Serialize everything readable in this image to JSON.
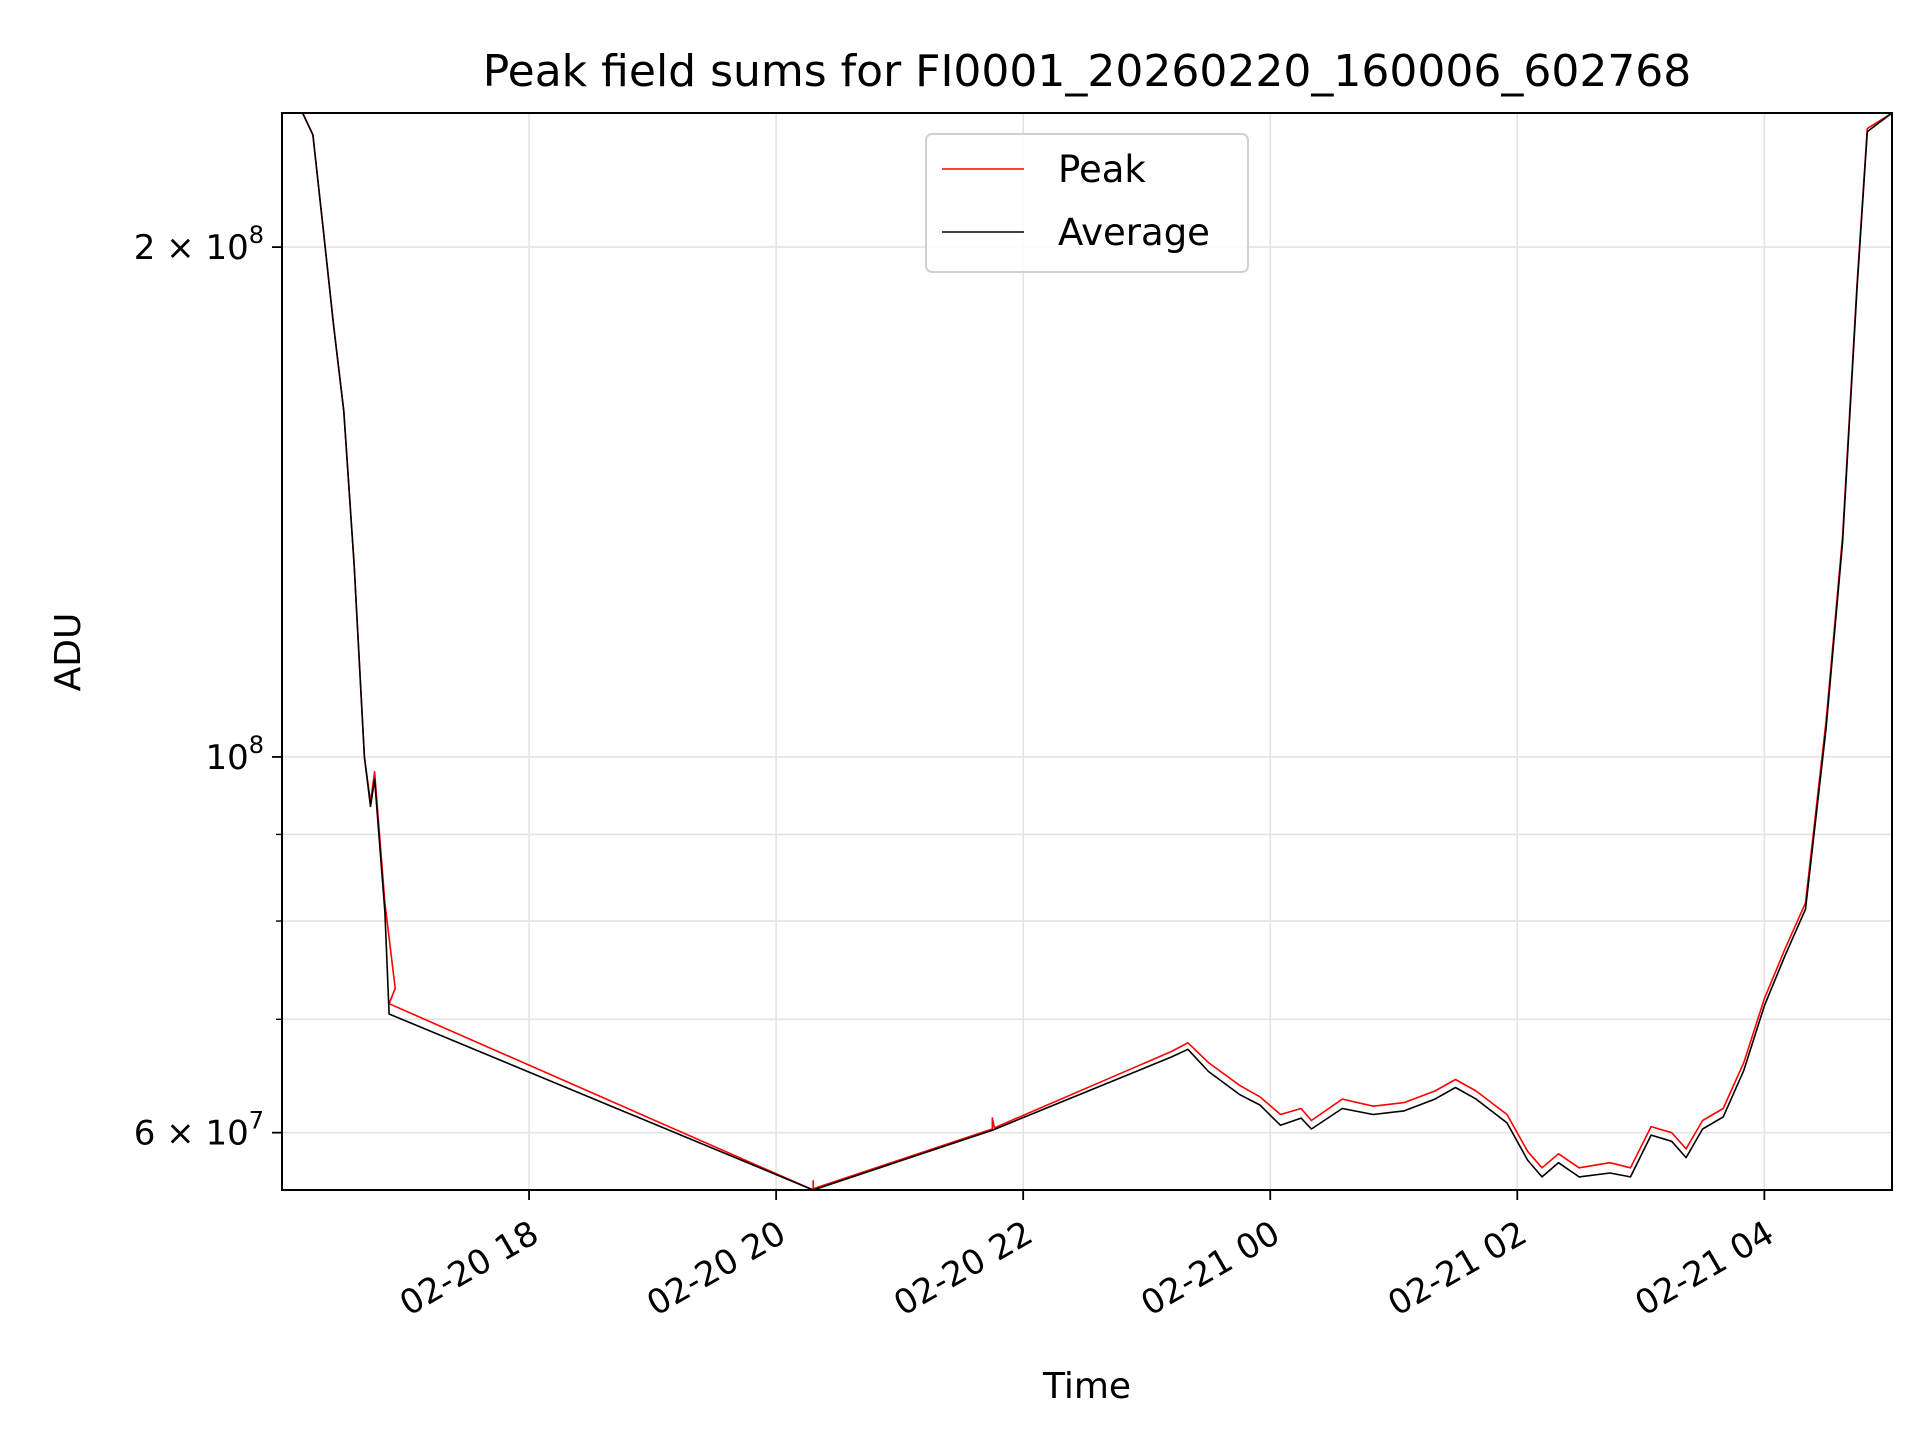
{
  "chart_data": {
    "type": "line",
    "title": "Peak field sums for FI0001_20260220_160006_602768",
    "xlabel": "Time",
    "ylabel": "ADU",
    "x_range": [
      "2026-02-20 16:00",
      "2026-02-21 05:02"
    ],
    "y_range": [
      55500000,
      240000000
    ],
    "y_scale": "log",
    "grid": true,
    "legend_position": "top-center",
    "x_ticks": [
      {
        "label": "02-20 18",
        "t": "2026-02-20 18:00"
      },
      {
        "label": "02-20 20",
        "t": "2026-02-20 20:00"
      },
      {
        "label": "02-20 22",
        "t": "2026-02-20 22:00"
      },
      {
        "label": "02-21 00",
        "t": "2026-02-21 00:00"
      },
      {
        "label": "02-21 02",
        "t": "2026-02-21 02:00"
      },
      {
        "label": "02-21 04",
        "t": "2026-02-21 04:00"
      }
    ],
    "y_ticks": [
      {
        "label": "2 × 10^8",
        "mantissa": "2 × 10",
        "exp": "8",
        "value": 200000000
      },
      {
        "label": "10^8",
        "mantissa": "10",
        "exp": "8",
        "value": 100000000
      },
      {
        "label": "6 × 10^7",
        "mantissa": "6 × 10",
        "exp": "7",
        "value": 60000000
      }
    ],
    "y_minor_ticks": [
      70000000,
      80000000,
      90000000
    ],
    "series": [
      {
        "name": "Peak",
        "color": "#ff0000",
        "points": [
          [
            "2026-02-20 16:00",
            240000000
          ],
          [
            "2026-02-20 16:10",
            240000000
          ],
          [
            "2026-02-20 16:15",
            233000000
          ],
          [
            "2026-02-20 16:20",
            205000000
          ],
          [
            "2026-02-20 16:25",
            180000000
          ],
          [
            "2026-02-20 16:30",
            160000000
          ],
          [
            "2026-02-20 16:35",
            130000000
          ],
          [
            "2026-02-20 16:40",
            100000000
          ],
          [
            "2026-02-20 16:43",
            94000000
          ],
          [
            "2026-02-20 16:45",
            98000000
          ],
          [
            "2026-02-20 16:50",
            82000000
          ],
          [
            "2026-02-20 16:55",
            73000000
          ],
          [
            "2026-02-20 16:52",
            71500000
          ],
          [
            "2026-02-20 20:18",
            55500000
          ],
          [
            "2026-02-20 20:18",
            56200000
          ],
          [
            "2026-02-20 20:18",
            55600000
          ],
          [
            "2026-02-20 21:45",
            60300000
          ],
          [
            "2026-02-20 21:45",
            61200000
          ],
          [
            "2026-02-20 21:46",
            60400000
          ],
          [
            "2026-02-20 23:12",
            67000000
          ],
          [
            "2026-02-20 23:20",
            67800000
          ],
          [
            "2026-02-20 23:30",
            66000000
          ],
          [
            "2026-02-20 23:45",
            64000000
          ],
          [
            "2026-02-20 23:55",
            63000000
          ],
          [
            "2026-02-21 00:05",
            61500000
          ],
          [
            "2026-02-21 00:15",
            62000000
          ],
          [
            "2026-02-21 00:20",
            61000000
          ],
          [
            "2026-02-21 00:35",
            62800000
          ],
          [
            "2026-02-21 00:50",
            62200000
          ],
          [
            "2026-02-21 01:05",
            62500000
          ],
          [
            "2026-02-21 01:20",
            63500000
          ],
          [
            "2026-02-21 01:30",
            64500000
          ],
          [
            "2026-02-21 01:40",
            63500000
          ],
          [
            "2026-02-21 01:55",
            61500000
          ],
          [
            "2026-02-21 02:05",
            58500000
          ],
          [
            "2026-02-21 02:12",
            57200000
          ],
          [
            "2026-02-21 02:20",
            58300000
          ],
          [
            "2026-02-21 02:30",
            57200000
          ],
          [
            "2026-02-21 02:45",
            57600000
          ],
          [
            "2026-02-21 02:55",
            57200000
          ],
          [
            "2026-02-21 03:05",
            60500000
          ],
          [
            "2026-02-21 03:15",
            60000000
          ],
          [
            "2026-02-21 03:22",
            58700000
          ],
          [
            "2026-02-21 03:30",
            61000000
          ],
          [
            "2026-02-21 03:40",
            62000000
          ],
          [
            "2026-02-21 03:50",
            66000000
          ],
          [
            "2026-02-21 04:00",
            72000000
          ],
          [
            "2026-02-21 04:10",
            77000000
          ],
          [
            "2026-02-21 04:20",
            82000000
          ],
          [
            "2026-02-21 04:30",
            105000000
          ],
          [
            "2026-02-21 04:38",
            135000000
          ],
          [
            "2026-02-21 04:45",
            190000000
          ],
          [
            "2026-02-21 04:50",
            235000000
          ],
          [
            "2026-02-21 05:02",
            240000000
          ]
        ]
      },
      {
        "name": "Average",
        "color": "#000000",
        "points": [
          [
            "2026-02-20 16:00",
            240000000
          ],
          [
            "2026-02-20 16:10",
            240000000
          ],
          [
            "2026-02-20 16:15",
            233000000
          ],
          [
            "2026-02-20 16:20",
            205000000
          ],
          [
            "2026-02-20 16:25",
            180000000
          ],
          [
            "2026-02-20 16:30",
            160000000
          ],
          [
            "2026-02-20 16:35",
            130000000
          ],
          [
            "2026-02-20 16:40",
            100000000
          ],
          [
            "2026-02-20 16:43",
            93500000
          ],
          [
            "2026-02-20 16:45",
            97000000
          ],
          [
            "2026-02-20 16:50",
            81000000
          ],
          [
            "2026-02-20 16:52",
            70500000
          ],
          [
            "2026-02-20 20:18",
            55500000
          ],
          [
            "2026-02-20 21:45",
            60200000
          ],
          [
            "2026-02-20 23:12",
            66500000
          ],
          [
            "2026-02-20 23:20",
            67200000
          ],
          [
            "2026-02-20 23:30",
            65200000
          ],
          [
            "2026-02-20 23:45",
            63200000
          ],
          [
            "2026-02-20 23:55",
            62300000
          ],
          [
            "2026-02-21 00:05",
            60600000
          ],
          [
            "2026-02-21 00:15",
            61200000
          ],
          [
            "2026-02-21 00:20",
            60300000
          ],
          [
            "2026-02-21 00:35",
            62000000
          ],
          [
            "2026-02-21 00:50",
            61500000
          ],
          [
            "2026-02-21 01:05",
            61800000
          ],
          [
            "2026-02-21 01:20",
            62800000
          ],
          [
            "2026-02-21 01:30",
            63800000
          ],
          [
            "2026-02-21 01:40",
            62800000
          ],
          [
            "2026-02-21 01:55",
            60800000
          ],
          [
            "2026-02-21 02:05",
            57800000
          ],
          [
            "2026-02-21 02:12",
            56500000
          ],
          [
            "2026-02-21 02:20",
            57600000
          ],
          [
            "2026-02-21 02:30",
            56500000
          ],
          [
            "2026-02-21 02:45",
            56800000
          ],
          [
            "2026-02-21 02:55",
            56500000
          ],
          [
            "2026-02-21 03:05",
            59800000
          ],
          [
            "2026-02-21 03:15",
            59300000
          ],
          [
            "2026-02-21 03:22",
            58000000
          ],
          [
            "2026-02-21 03:30",
            60300000
          ],
          [
            "2026-02-21 03:40",
            61300000
          ],
          [
            "2026-02-21 03:50",
            65300000
          ],
          [
            "2026-02-21 04:00",
            71300000
          ],
          [
            "2026-02-21 04:10",
            76300000
          ],
          [
            "2026-02-21 04:20",
            81300000
          ],
          [
            "2026-02-21 04:30",
            104000000
          ],
          [
            "2026-02-21 04:38",
            134000000
          ],
          [
            "2026-02-21 04:45",
            189000000
          ],
          [
            "2026-02-21 04:50",
            234000000
          ],
          [
            "2026-02-21 05:02",
            240000000
          ]
        ]
      }
    ]
  }
}
